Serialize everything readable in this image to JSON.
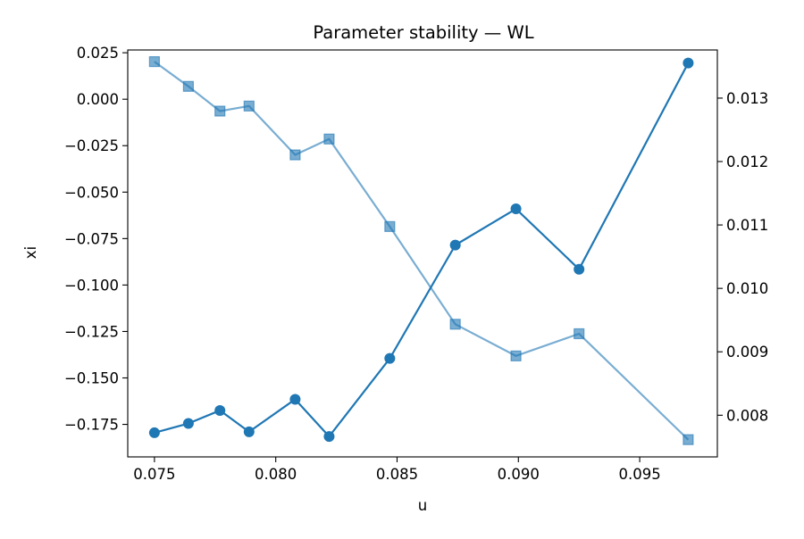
{
  "chart_data": {
    "type": "line",
    "title": "Parameter stability — WL",
    "xlabel": "u",
    "ylabel": "xi",
    "y2label": "",
    "xlim": [
      0.0739,
      0.0982
    ],
    "ylim": [
      -0.1925,
      0.0265
    ],
    "y2lim": [
      0.007343,
      0.013759
    ],
    "x_ticks": [
      "0.075",
      "0.080",
      "0.085",
      "0.090",
      "0.095"
    ],
    "y_ticks": [
      "0.025",
      "0.000",
      "−0.025",
      "−0.050",
      "−0.075",
      "−0.100",
      "−0.125",
      "−0.150",
      "−0.175"
    ],
    "y2_ticks": [
      "0.008",
      "0.009",
      "0.010",
      "0.011",
      "0.012",
      "0.013"
    ],
    "grid": false,
    "legend": "none",
    "x": [
      0.075,
      0.0764,
      0.0777,
      0.0789,
      0.0808,
      0.0822,
      0.0847,
      0.0874,
      0.0899,
      0.0925,
      0.097
    ],
    "series": [
      {
        "axis": "left",
        "marker": "circle",
        "color": "#1f77b4",
        "values": [
          -0.1795,
          -0.1745,
          -0.1675,
          -0.179,
          -0.1615,
          -0.1815,
          -0.1395,
          -0.0785,
          -0.059,
          -0.0915,
          0.0195
        ]
      },
      {
        "axis": "right",
        "marker": "square",
        "color": "#1f77b4",
        "opacity": 0.6,
        "values": [
          0.013575,
          0.013185,
          0.012795,
          0.012875,
          0.012105,
          0.012355,
          0.010975,
          0.009435,
          0.008935,
          0.009285,
          0.007615
        ]
      }
    ]
  }
}
